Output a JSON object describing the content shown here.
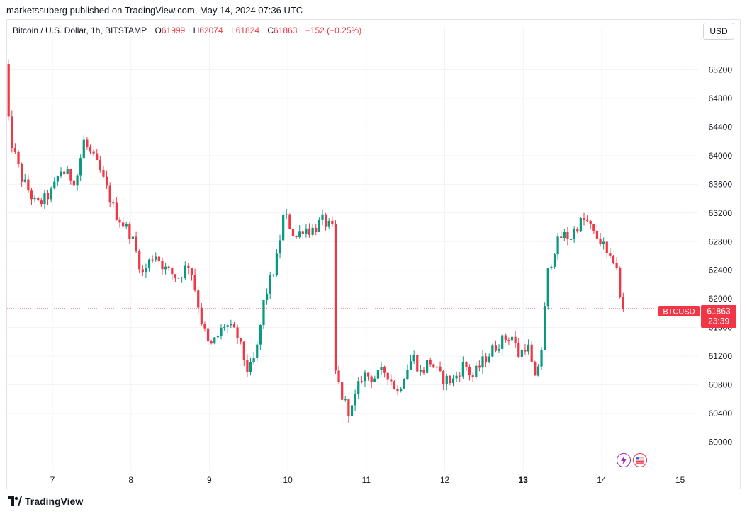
{
  "header": {
    "published_by": "marketssuberg published on TradingView.com, May 14, 2024 07:36 UTC"
  },
  "legend": {
    "symbol": "Bitcoin / U.S. Dollar, 1h, BITSTAMP",
    "open_label": "O",
    "open": "61999",
    "high_label": "H",
    "high": "62074",
    "low_label": "L",
    "low": "61824",
    "close_label": "C",
    "close": "61863",
    "change": "−152 (−0.25%)"
  },
  "toolbar": {
    "currency_label": "USD"
  },
  "price_tag": {
    "symbol": "BTCUSD",
    "price": "61863",
    "countdown": "23:39"
  },
  "footer": {
    "brand": "TradingView"
  },
  "colors": {
    "up": "#089981",
    "down": "#f23645",
    "grid": "#f0f3fa",
    "text": "#131722"
  },
  "icons": [
    "lightning-icon",
    "us-flag-icon"
  ],
  "chart_data": {
    "type": "candlestick",
    "symbol": "BTCUSD",
    "interval": "1h",
    "ylim": [
      59600,
      65600
    ],
    "yticks": [
      60000,
      60400,
      60800,
      61200,
      61600,
      62000,
      62400,
      62800,
      63200,
      63600,
      64000,
      64400,
      64800,
      65200
    ],
    "x_ticks": [
      {
        "label": "7",
        "day": 7,
        "bold": false
      },
      {
        "label": "8",
        "day": 8,
        "bold": false
      },
      {
        "label": "9",
        "day": 9,
        "bold": false
      },
      {
        "label": "10",
        "day": 10,
        "bold": false
      },
      {
        "label": "11",
        "day": 11,
        "bold": false
      },
      {
        "label": "12",
        "day": 12,
        "bold": false
      },
      {
        "label": "13",
        "day": 13,
        "bold": true
      },
      {
        "label": "14",
        "day": 14,
        "bold": false
      },
      {
        "label": "15",
        "day": 15,
        "bold": false
      }
    ],
    "start_day": 6.4,
    "end_day": 15.2,
    "last_price": 61863,
    "grid": true,
    "anchors": [
      [
        6.4,
        65250
      ],
      [
        6.45,
        64300
      ],
      [
        6.6,
        63700
      ],
      [
        6.8,
        63300
      ],
      [
        7.0,
        63500
      ],
      [
        7.1,
        63800
      ],
      [
        7.3,
        63650
      ],
      [
        7.4,
        64200
      ],
      [
        7.5,
        64000
      ],
      [
        7.6,
        63800
      ],
      [
        7.8,
        63200
      ],
      [
        8.0,
        62900
      ],
      [
        8.15,
        62350
      ],
      [
        8.3,
        62650
      ],
      [
        8.45,
        62400
      ],
      [
        8.6,
        62300
      ],
      [
        8.75,
        62500
      ],
      [
        8.9,
        61700
      ],
      [
        9.0,
        61300
      ],
      [
        9.2,
        61650
      ],
      [
        9.35,
        61500
      ],
      [
        9.5,
        60950
      ],
      [
        9.6,
        61250
      ],
      [
        9.7,
        62000
      ],
      [
        9.85,
        62500
      ],
      [
        9.95,
        63200
      ],
      [
        10.1,
        62850
      ],
      [
        10.2,
        63000
      ],
      [
        10.3,
        62950
      ],
      [
        10.45,
        63100
      ],
      [
        10.58,
        62950
      ],
      [
        10.6,
        61000
      ],
      [
        10.7,
        60600
      ],
      [
        10.8,
        60400
      ],
      [
        10.95,
        60950
      ],
      [
        11.1,
        60900
      ],
      [
        11.25,
        61000
      ],
      [
        11.4,
        60700
      ],
      [
        11.5,
        61000
      ],
      [
        11.6,
        61200
      ],
      [
        11.7,
        60950
      ],
      [
        11.8,
        61150
      ],
      [
        11.95,
        60900
      ],
      [
        12.1,
        60850
      ],
      [
        12.25,
        61100
      ],
      [
        12.35,
        60900
      ],
      [
        12.5,
        61150
      ],
      [
        12.7,
        61400
      ],
      [
        12.85,
        61500
      ],
      [
        12.95,
        61200
      ],
      [
        13.05,
        61400
      ],
      [
        13.15,
        60850
      ],
      [
        13.25,
        61400
      ],
      [
        13.3,
        62300
      ],
      [
        13.4,
        62700
      ],
      [
        13.5,
        62900
      ],
      [
        13.6,
        62850
      ],
      [
        13.7,
        63050
      ],
      [
        13.8,
        63100
      ],
      [
        13.9,
        62900
      ],
      [
        14.0,
        62800
      ],
      [
        14.1,
        62500
      ],
      [
        14.18,
        62600
      ],
      [
        14.23,
        62000
      ],
      [
        14.3,
        61863
      ]
    ]
  }
}
